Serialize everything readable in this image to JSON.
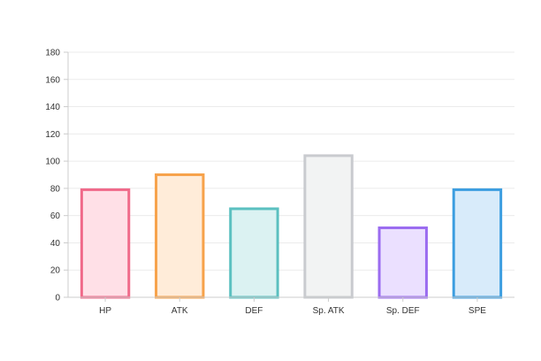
{
  "chart_data": {
    "type": "bar",
    "categories": [
      "HP",
      "ATK",
      "DEF",
      "Sp. ATK",
      "Sp. DEF",
      "SPE"
    ],
    "values": [
      80,
      91,
      66,
      105,
      52,
      80
    ],
    "ylim": [
      0,
      180
    ],
    "yticks": [
      0,
      20,
      40,
      60,
      80,
      100,
      120,
      140,
      160,
      180
    ],
    "grid": true,
    "legend": "none",
    "bar_colors": [
      {
        "stroke": "#f06a8a",
        "fill": "#ffe0e7"
      },
      {
        "stroke": "#f7a24a",
        "fill": "#ffecd9"
      },
      {
        "stroke": "#5bc0c0",
        "fill": "#dbf2f2"
      },
      {
        "stroke": "#c9cbcf",
        "fill": "#f2f3f3"
      },
      {
        "stroke": "#9b6cf0",
        "fill": "#ebe0ff"
      },
      {
        "stroke": "#3d9ee0",
        "fill": "#d8ebfa"
      }
    ],
    "gridline_color": "#ebebeb",
    "axis_color": "#cccccc"
  }
}
